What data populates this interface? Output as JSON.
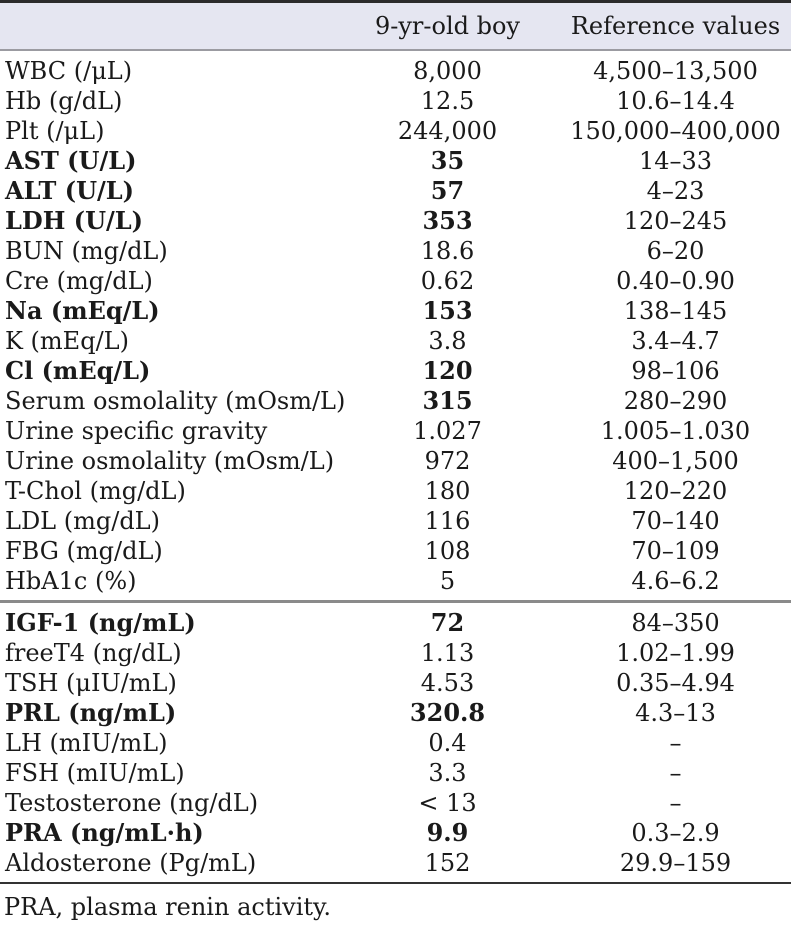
{
  "colors": {
    "header_bg": "#e5e6f1",
    "top_border": "#2b2b2b",
    "header_rule": "#9b9ba1",
    "section_rule": "#8a8a8a",
    "text": "#1a1a1a"
  },
  "table": {
    "headers": [
      "",
      "9-yr-old boy",
      "Reference values"
    ],
    "sections": [
      {
        "rows": [
          {
            "label": "WBC (/μL)",
            "value": "8,000",
            "reference": "4,500–13,500",
            "bold_label": false,
            "bold_value": false
          },
          {
            "label": "Hb (g/dL)",
            "value": "12.5",
            "reference": "10.6–14.4",
            "bold_label": false,
            "bold_value": false
          },
          {
            "label": "Plt (/μL)",
            "value": "244,000",
            "reference": "150,000–400,000",
            "bold_label": false,
            "bold_value": false
          },
          {
            "label": "AST (U/L)",
            "value": "35",
            "reference": "14–33",
            "bold_label": true,
            "bold_value": true
          },
          {
            "label": "ALT (U/L)",
            "value": "57",
            "reference": "4–23",
            "bold_label": true,
            "bold_value": true
          },
          {
            "label": "LDH (U/L)",
            "value": "353",
            "reference": "120–245",
            "bold_label": true,
            "bold_value": true
          },
          {
            "label": "BUN (mg/dL)",
            "value": "18.6",
            "reference": "6–20",
            "bold_label": false,
            "bold_value": false
          },
          {
            "label": "Cre (mg/dL)",
            "value": "0.62",
            "reference": "0.40–0.90",
            "bold_label": false,
            "bold_value": false
          },
          {
            "label": "Na (mEq/L)",
            "value": "153",
            "reference": "138–145",
            "bold_label": true,
            "bold_value": true
          },
          {
            "label": "K (mEq/L)",
            "value": "3.8",
            "reference": "3.4–4.7",
            "bold_label": false,
            "bold_value": false
          },
          {
            "label": "Cl (mEq/L)",
            "value": "120",
            "reference": "98–106",
            "bold_label": true,
            "bold_value": true
          },
          {
            "label": "Serum osmolality (mOsm/L)",
            "value": "315",
            "reference": "280–290",
            "bold_label": false,
            "bold_value": true
          },
          {
            "label": "Urine specific gravity",
            "value": "1.027",
            "reference": "1.005–1.030",
            "bold_label": false,
            "bold_value": false
          },
          {
            "label": "Urine osmolality (mOsm/L)",
            "value": "972",
            "reference": "400–1,500",
            "bold_label": false,
            "bold_value": false
          },
          {
            "label": "T-Chol (mg/dL)",
            "value": "180",
            "reference": "120–220",
            "bold_label": false,
            "bold_value": false
          },
          {
            "label": "LDL (mg/dL)",
            "value": "116",
            "reference": "70–140",
            "bold_label": false,
            "bold_value": false
          },
          {
            "label": "FBG (mg/dL)",
            "value": "108",
            "reference": "70–109",
            "bold_label": false,
            "bold_value": false
          },
          {
            "label": "HbA1c (%)",
            "value": "5",
            "reference": "4.6–6.2",
            "bold_label": false,
            "bold_value": false
          }
        ]
      },
      {
        "rows": [
          {
            "label": "IGF-1 (ng/mL)",
            "value": "72",
            "reference": "84–350",
            "bold_label": true,
            "bold_value": true
          },
          {
            "label": "freeT4 (ng/dL)",
            "value": "1.13",
            "reference": "1.02–1.99",
            "bold_label": false,
            "bold_value": false
          },
          {
            "label": "TSH (μIU/mL)",
            "value": "4.53",
            "reference": "0.35–4.94",
            "bold_label": false,
            "bold_value": false
          },
          {
            "label": "PRL (ng/mL)",
            "value": "320.8",
            "reference": "4.3–13",
            "bold_label": true,
            "bold_value": true
          },
          {
            "label": "LH (mIU/mL)",
            "value": "0.4",
            "reference": "–",
            "bold_label": false,
            "bold_value": false
          },
          {
            "label": "FSH (mIU/mL)",
            "value": "3.3",
            "reference": "–",
            "bold_label": false,
            "bold_value": false
          },
          {
            "label": "Testosterone (ng/dL)",
            "value": "< 13",
            "reference": "–",
            "bold_label": false,
            "bold_value": false
          },
          {
            "label": "PRA (ng/mL·h)",
            "value": "9.9",
            "reference": "0.3–2.9",
            "bold_label": true,
            "bold_value": true
          },
          {
            "label": "Aldosterone (Pg/mL)",
            "value": "152",
            "reference": "29.9–159",
            "bold_label": false,
            "bold_value": false
          }
        ]
      }
    ],
    "footnote": "PRA, plasma renin activity."
  }
}
